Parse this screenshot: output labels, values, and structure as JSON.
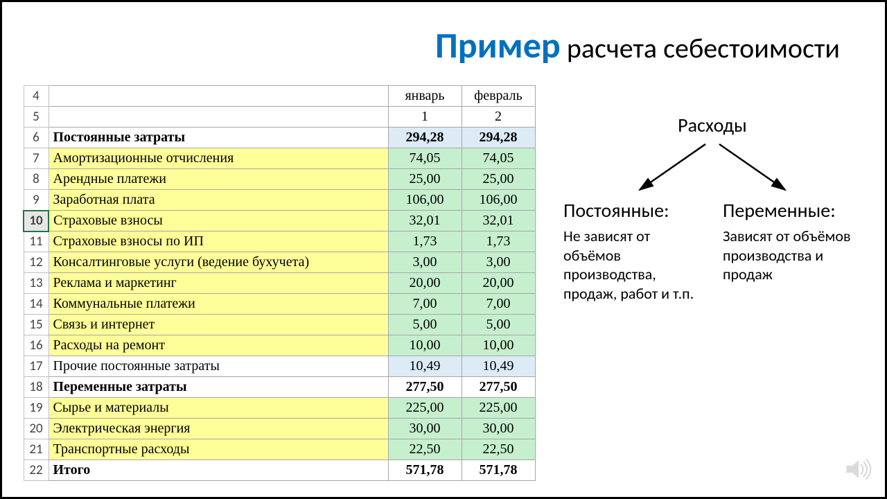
{
  "title": {
    "emph": "Пример",
    "rest": " расчета себестоимости"
  },
  "table": {
    "header_months": [
      "январь",
      "февраль"
    ],
    "header_nums": [
      "1",
      "2"
    ],
    "selected_row": 10,
    "rows": [
      {
        "n": 4,
        "label": "",
        "jan": "",
        "feb": "",
        "desc_bg": "white",
        "val_bg": "white",
        "bold": false
      },
      {
        "n": 5,
        "label": "",
        "jan": "",
        "feb": "",
        "desc_bg": "white",
        "val_bg": "white",
        "bold": false
      },
      {
        "n": 6,
        "label": "Постоянные затраты",
        "jan": "294,28",
        "feb": "294,28",
        "desc_bg": "white",
        "val_bg": "blue",
        "bold": true
      },
      {
        "n": 7,
        "label": "Амортизационные отчисления",
        "jan": "74,05",
        "feb": "74,05",
        "desc_bg": "yellow",
        "val_bg": "green",
        "bold": false
      },
      {
        "n": 8,
        "label": "Арендные платежи",
        "jan": "25,00",
        "feb": "25,00",
        "desc_bg": "yellow",
        "val_bg": "green",
        "bold": false
      },
      {
        "n": 9,
        "label": "Заработная плата",
        "jan": "106,00",
        "feb": "106,00",
        "desc_bg": "yellow",
        "val_bg": "green",
        "bold": false
      },
      {
        "n": 10,
        "label": "Страховые взносы",
        "jan": "32,01",
        "feb": "32,01",
        "desc_bg": "yellow",
        "val_bg": "green",
        "bold": false
      },
      {
        "n": 11,
        "label": "Страховые взносы по ИП",
        "jan": "1,73",
        "feb": "1,73",
        "desc_bg": "yellow",
        "val_bg": "green",
        "bold": false
      },
      {
        "n": 12,
        "label": "Консалтинговые услуги (ведение бухучета)",
        "jan": "3,00",
        "feb": "3,00",
        "desc_bg": "yellow",
        "val_bg": "green",
        "bold": false
      },
      {
        "n": 13,
        "label": "Реклама и маркетинг",
        "jan": "20,00",
        "feb": "20,00",
        "desc_bg": "yellow",
        "val_bg": "green",
        "bold": false
      },
      {
        "n": 14,
        "label": "Коммунальные платежи",
        "jan": "7,00",
        "feb": "7,00",
        "desc_bg": "yellow",
        "val_bg": "green",
        "bold": false
      },
      {
        "n": 15,
        "label": "Связь и интернет",
        "jan": "5,00",
        "feb": "5,00",
        "desc_bg": "yellow",
        "val_bg": "green",
        "bold": false
      },
      {
        "n": 16,
        "label": "Расходы на ремонт",
        "jan": "10,00",
        "feb": "10,00",
        "desc_bg": "yellow",
        "val_bg": "green",
        "bold": false
      },
      {
        "n": 17,
        "label": "Прочие постоянные затраты",
        "jan": "10,49",
        "feb": "10,49",
        "desc_bg": "white",
        "val_bg": "blue",
        "bold": false
      },
      {
        "n": 18,
        "label": "Переменные затраты",
        "jan": "277,50",
        "feb": "277,50",
        "desc_bg": "white",
        "val_bg": "white",
        "bold": true
      },
      {
        "n": 19,
        "label": "Сырье и материалы",
        "jan": "225,00",
        "feb": "225,00",
        "desc_bg": "yellow",
        "val_bg": "green",
        "bold": false
      },
      {
        "n": 20,
        "label": "Электрическая энергия",
        "jan": "30,00",
        "feb": "30,00",
        "desc_bg": "yellow",
        "val_bg": "green",
        "bold": false
      },
      {
        "n": 21,
        "label": "Транспортные расходы",
        "jan": "22,50",
        "feb": "22,50",
        "desc_bg": "yellow",
        "val_bg": "green",
        "bold": false
      },
      {
        "n": 22,
        "label": "Итого",
        "jan": "571,78",
        "feb": "571,78",
        "desc_bg": "white",
        "val_bg": "white",
        "bold": true
      }
    ],
    "colors": {
      "yellow": "#ffff99",
      "green": "#c6efce",
      "blue": "#ddebf7",
      "white": "#ffffff",
      "border": "#a6a6a6"
    }
  },
  "diagram": {
    "root": "Расходы",
    "left": {
      "head": "Постоянные:",
      "body": "Не зависят от объёмов производства, продаж, работ и т.п."
    },
    "right": {
      "head": "Переменные:",
      "body": "Зависят от объёмов производства и продаж"
    },
    "arrow_color": "#000000"
  },
  "icons": {
    "speaker": "speaker-icon"
  }
}
